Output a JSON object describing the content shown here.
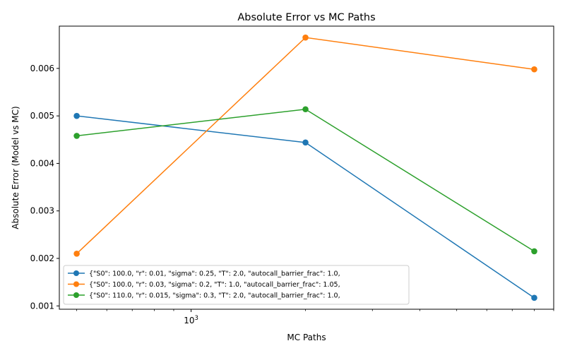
{
  "chart_data": {
    "type": "line",
    "title": "Absolute Error vs MC Paths",
    "xlabel": "MC Paths",
    "ylabel": "Absolute Error (Model vs MC)",
    "xscale": "log",
    "xlim": [
      450,
      9000
    ],
    "ylim": [
      0.00093,
      0.00689
    ],
    "x": [
      500,
      2000,
      8000
    ],
    "x_tick_label": "10^3",
    "y_ticks": [
      0.001,
      0.002,
      0.003,
      0.004,
      0.005,
      0.006
    ],
    "y_tick_labels": [
      "0.001",
      "0.002",
      "0.003",
      "0.004",
      "0.005",
      "0.006"
    ],
    "grid": false,
    "legend_position": "lower-left",
    "series": [
      {
        "name": "{\"S0\": 100.0, \"r\": 0.01, \"sigma\": 0.25, \"T\": 2.0, \"autocall_barrier_frac\": 1.0,",
        "color": "#1f77b4",
        "values": [
          0.005,
          0.00444,
          0.00117
        ]
      },
      {
        "name": "{\"S0\": 100.0, \"r\": 0.03, \"sigma\": 0.2, \"T\": 1.0, \"autocall_barrier_frac\": 1.05,",
        "color": "#ff7f0e",
        "values": [
          0.0021,
          0.00665,
          0.00598
        ]
      },
      {
        "name": "{\"S0\": 110.0, \"r\": 0.015, \"sigma\": 0.3, \"T\": 2.0, \"autocall_barrier_frac\": 1.0,",
        "color": "#2ca02c",
        "values": [
          0.00458,
          0.00514,
          0.00215
        ]
      }
    ]
  }
}
